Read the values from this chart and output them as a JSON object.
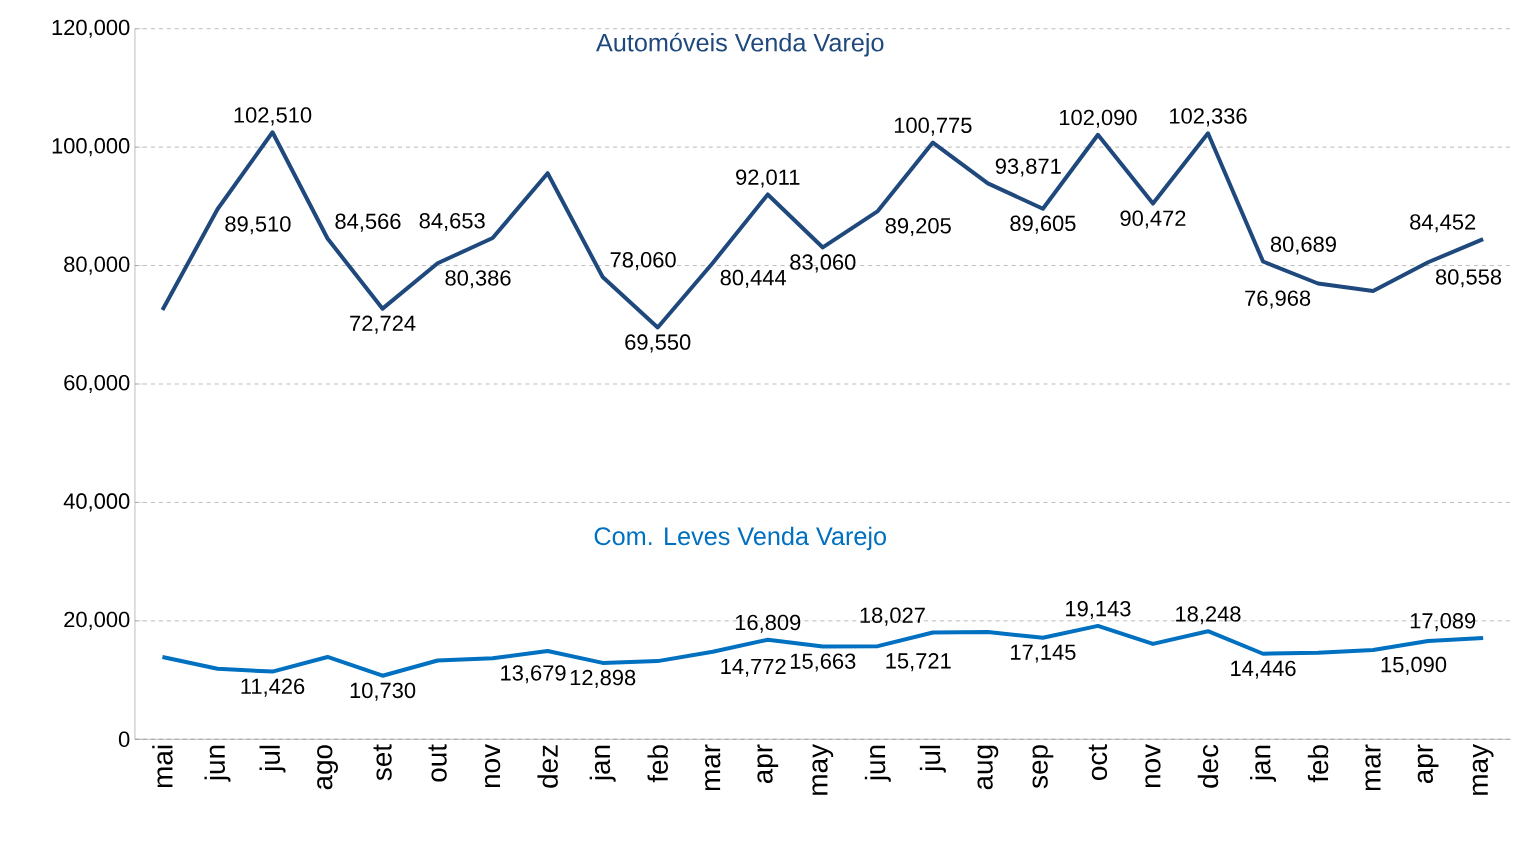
{
  "chart_data": {
    "type": "line",
    "categories": [
      "mai",
      "jun",
      "jul",
      "ago",
      "set",
      "out",
      "nov",
      "dez",
      "jan",
      "feb",
      "mar",
      "apr",
      "may",
      "jun",
      "jul",
      "aug",
      "sep",
      "oct",
      "nov",
      "dec",
      "jan",
      "feb",
      "mar",
      "apr",
      "may"
    ],
    "series": [
      {
        "name": "Automóveis Venda Varejo",
        "color": "#1f497d",
        "values": [
          72500,
          89510,
          102510,
          84566,
          72724,
          80386,
          84653,
          95600,
          78060,
          69550,
          80444,
          92011,
          83060,
          89205,
          100775,
          93871,
          89605,
          102090,
          90472,
          102336,
          80689,
          76968,
          75700,
          80558,
          84452
        ],
        "value_labels": [
          null,
          "89,510",
          "102,510",
          "84,566",
          "72,724",
          "80,386",
          "84,653",
          null,
          "78,060",
          "69,550",
          "80,444",
          "92,011",
          "83,060",
          "89,205",
          "100,775",
          "93,871",
          "89,605",
          "102,090",
          "90,472",
          "102,336",
          "80,689",
          "76,968",
          null,
          "80,558",
          "84,452"
        ]
      },
      {
        "name": "Com. Leves Venda Varejo",
        "color": "#0070c0",
        "values": [
          13900,
          11900,
          11426,
          13900,
          10730,
          13300,
          13679,
          14900,
          12898,
          13200,
          14772,
          16809,
          15663,
          15721,
          18027,
          18100,
          17145,
          19143,
          16100,
          18248,
          14446,
          14600,
          15090,
          16600,
          17089
        ],
        "value_labels": [
          null,
          null,
          "11,426",
          null,
          "10,730",
          null,
          "13,679",
          null,
          "12,898",
          null,
          "14,772",
          "16,809",
          "15,663",
          "15,721",
          "18,027",
          null,
          "17,145",
          "19,143",
          null,
          "18,248",
          "14,446",
          null,
          "15,090",
          null,
          "17,089"
        ]
      }
    ],
    "ylim": [
      0,
      120000
    ],
    "yticks": [
      {
        "value": 0,
        "label": "0"
      },
      {
        "value": 20000,
        "label": "20,000"
      },
      {
        "value": 40000,
        "label": "40,000"
      },
      {
        "value": 60000,
        "label": "60,000"
      },
      {
        "value": 80000,
        "label": "80,000"
      },
      {
        "value": 100000,
        "label": "100,000"
      },
      {
        "value": 120000,
        "label": "120,000"
      }
    ],
    "grid": "y",
    "legend": false,
    "marker": "none",
    "line_style": "solid"
  }
}
